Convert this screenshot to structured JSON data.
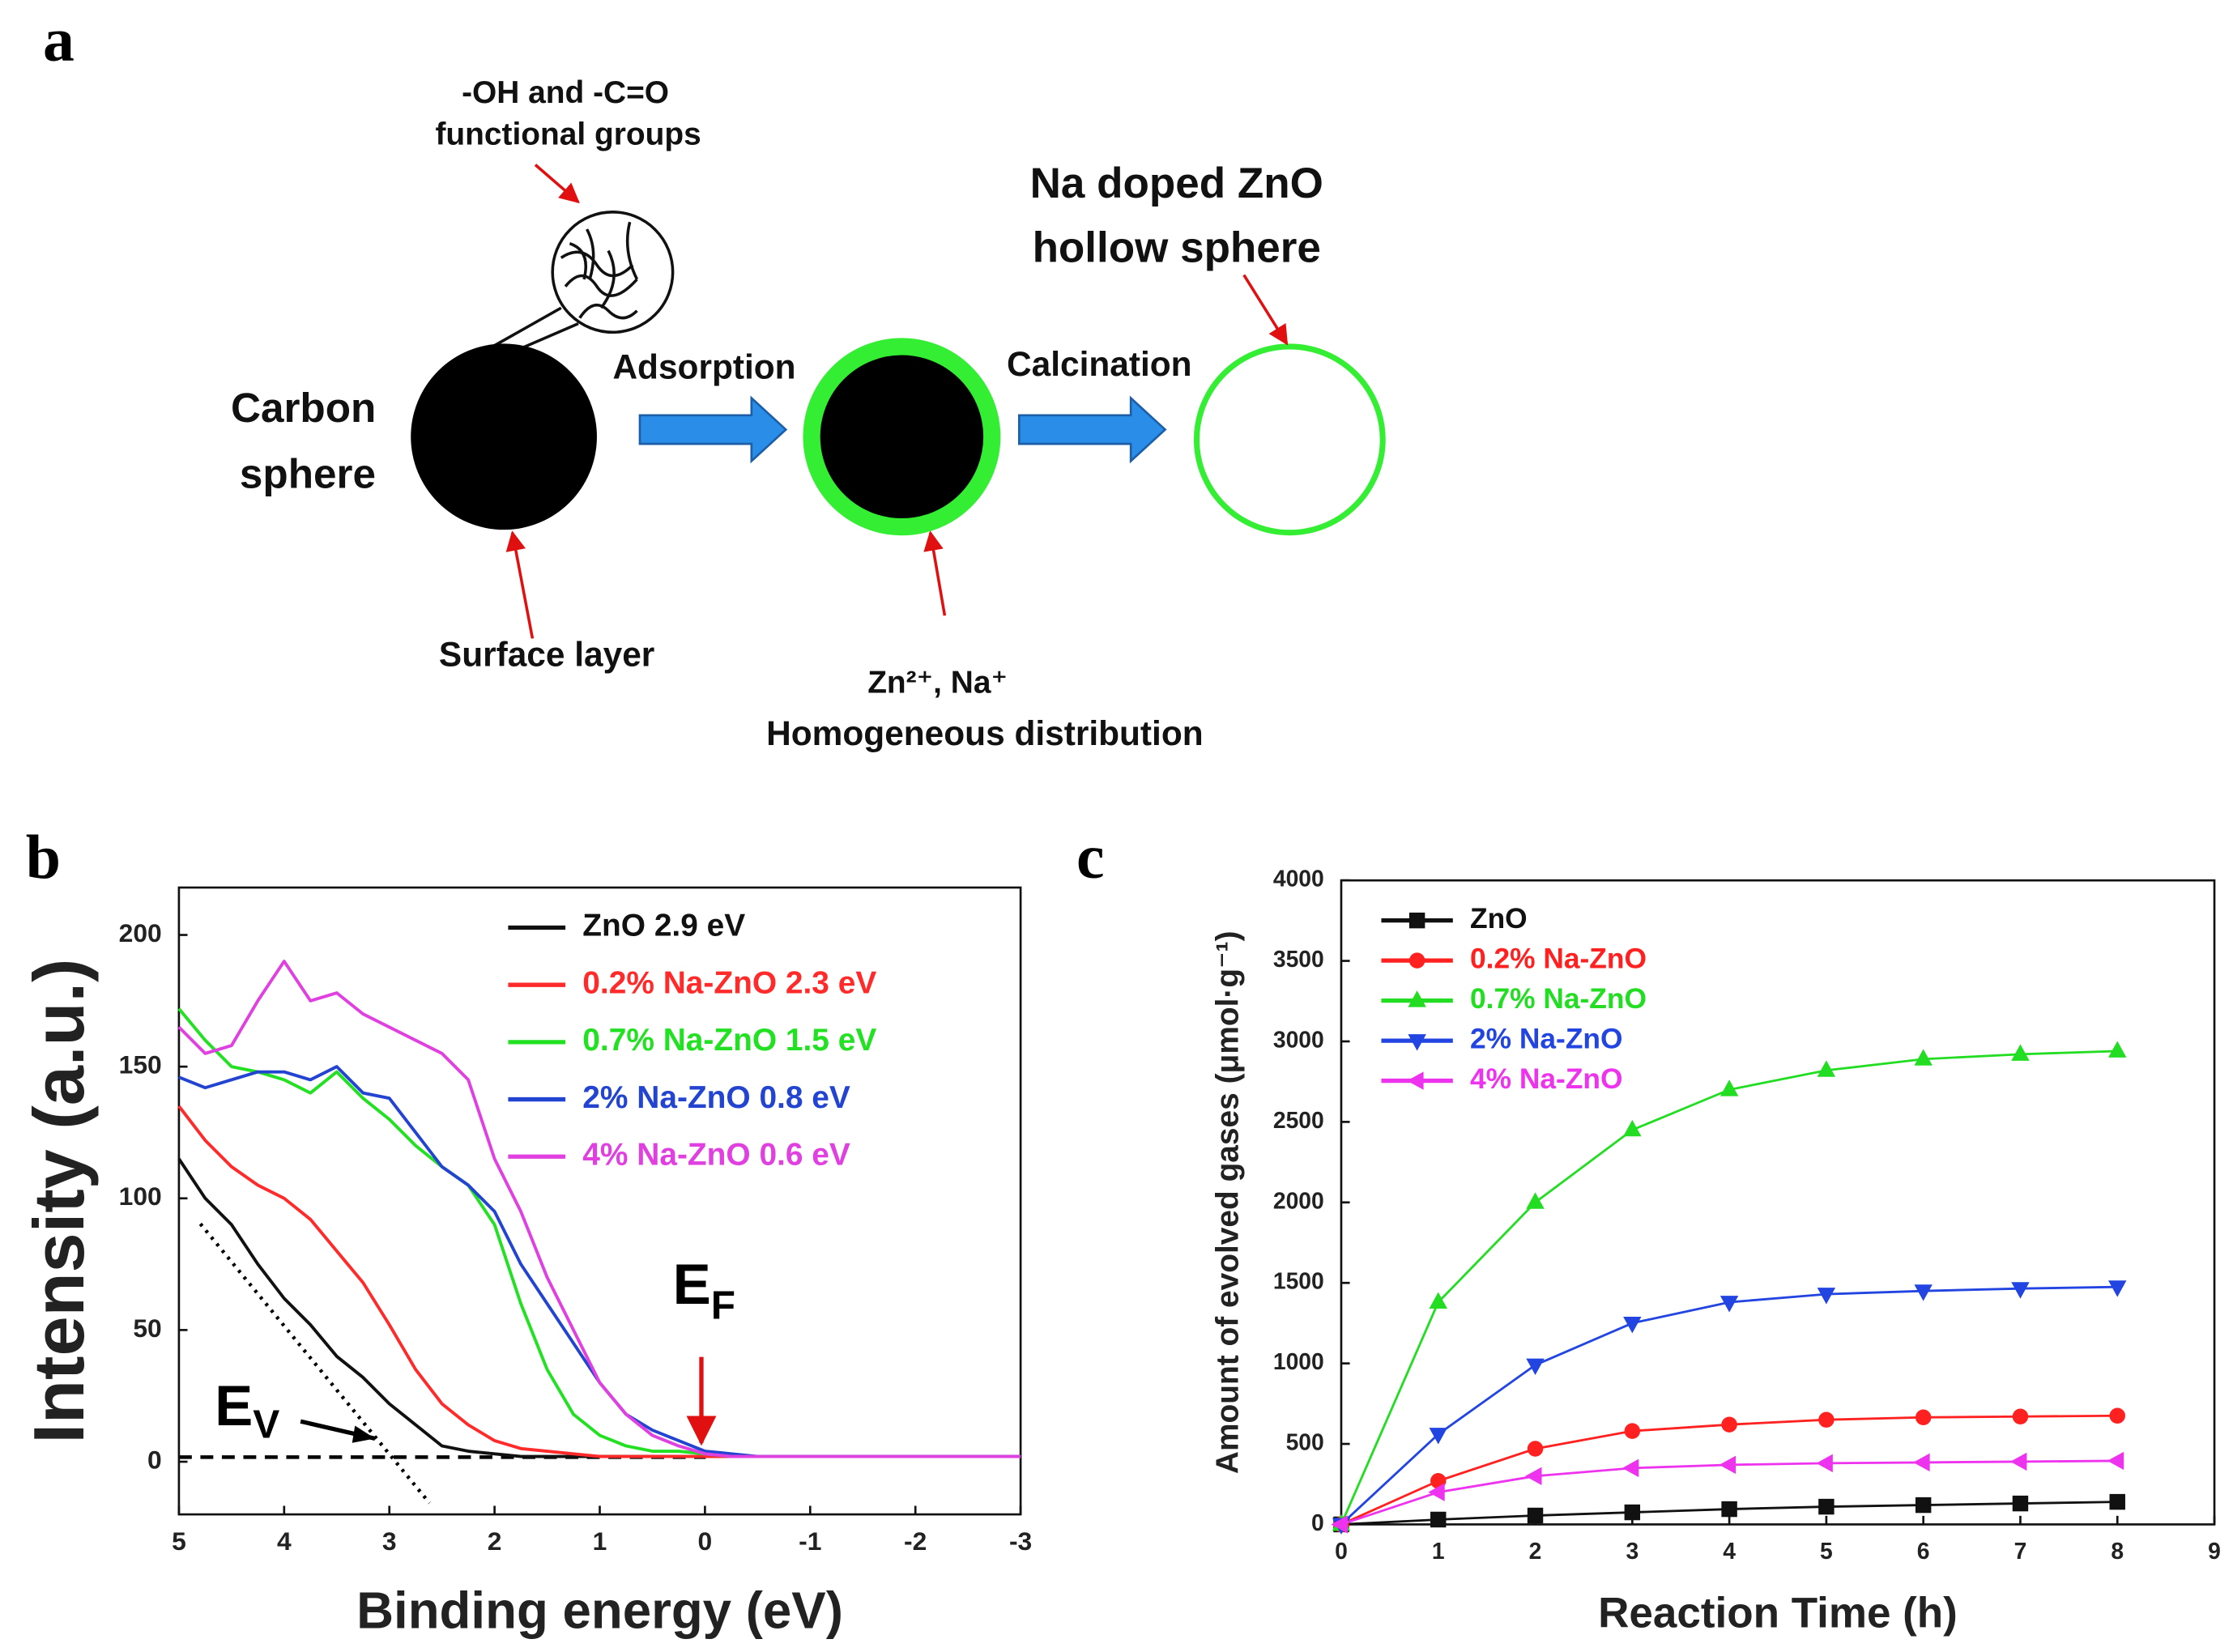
{
  "panel_labels": [
    "a",
    "b",
    "c"
  ],
  "diagram": {
    "groups_label": [
      "-OH and -C=O",
      "functional groups"
    ],
    "carbon_label": [
      "Carbon",
      "sphere"
    ],
    "surface_label": "Surface layer",
    "step1": "Adsorption",
    "ions_label": [
      "Zn²⁺, Na⁺",
      "Homogeneous distribution"
    ],
    "step2": "Calcination",
    "product_label": [
      "Na doped ZnO",
      "hollow sphere"
    ]
  },
  "chart_data": [
    {
      "type": "line",
      "xlabel": "Binding energy (eV)",
      "ylabel": "Intensity (a.u.)",
      "annotations": [
        {
          "text": "E",
          "sub": "V"
        },
        {
          "text": "E",
          "sub": "F"
        }
      ],
      "x": [
        5,
        4.75,
        4.5,
        4.25,
        4,
        3.75,
        3.5,
        3.25,
        3,
        2.75,
        2.5,
        2.25,
        2,
        1.75,
        1.5,
        1.25,
        1,
        0.75,
        0.5,
        0.25,
        0,
        -0.25,
        -0.5,
        -0.75,
        -1,
        -1.25,
        -1.5,
        -1.75,
        -2,
        -2.25,
        -2.5,
        -2.75,
        -3
      ],
      "series": [
        {
          "name": "ZnO 2.9 eV",
          "color": "#111111",
          "values": [
            115,
            100,
            90,
            75,
            62,
            52,
            40,
            32,
            22,
            14,
            6,
            4,
            3,
            2,
            2,
            2,
            2,
            2,
            2,
            2,
            2,
            2,
            2,
            2,
            2,
            2,
            2,
            2,
            2,
            2,
            2,
            2,
            2
          ]
        },
        {
          "name": "0.2% Na-ZnO 2.3 eV",
          "color": "#ff2a2a",
          "values": [
            135,
            122,
            112,
            105,
            100,
            92,
            80,
            68,
            52,
            35,
            22,
            14,
            8,
            5,
            4,
            3,
            2,
            2,
            2,
            2,
            2,
            2,
            2,
            2,
            2,
            2,
            2,
            2,
            2,
            2,
            2,
            2,
            2
          ]
        },
        {
          "name": "0.7% Na-ZnO 1.5 eV",
          "color": "#22e022",
          "values": [
            172,
            160,
            150,
            148,
            145,
            140,
            148,
            138,
            130,
            120,
            112,
            105,
            90,
            60,
            35,
            18,
            10,
            6,
            4,
            4,
            3,
            2,
            2,
            2,
            2,
            2,
            2,
            2,
            2,
            2,
            2,
            2,
            2
          ]
        },
        {
          "name": "2% Na-ZnO 0.8 eV",
          "color": "#2244d0",
          "values": [
            146,
            142,
            145,
            148,
            148,
            145,
            150,
            140,
            138,
            125,
            112,
            105,
            95,
            75,
            60,
            45,
            30,
            18,
            12,
            8,
            4,
            3,
            2,
            2,
            2,
            2,
            2,
            2,
            2,
            2,
            2,
            2,
            2
          ]
        },
        {
          "name": "4% Na-ZnO 0.6 eV",
          "color": "#e040e0",
          "values": [
            165,
            155,
            158,
            175,
            190,
            175,
            178,
            170,
            165,
            160,
            155,
            145,
            115,
            95,
            70,
            50,
            30,
            18,
            10,
            6,
            3,
            2,
            2,
            2,
            2,
            2,
            2,
            2,
            2,
            2,
            2,
            2,
            2
          ]
        }
      ],
      "xlim": [
        5,
        -3
      ],
      "xticks": [
        5,
        4,
        3,
        2,
        1,
        0,
        -1,
        -2,
        -3
      ],
      "ylim": [
        -20,
        218
      ],
      "yticks": [
        0,
        50,
        100,
        150,
        200
      ],
      "legend": "upper right"
    },
    {
      "type": "line",
      "xlabel": "Reaction Time (h)",
      "ylabel": "Amount of evolved gases (μmol·g⁻¹)",
      "x": [
        0,
        1,
        2,
        3,
        4,
        5,
        6,
        7,
        8
      ],
      "series": [
        {
          "name": "ZnO",
          "color": "#111111",
          "marker": "square",
          "values": [
            0,
            30,
            55,
            75,
            95,
            110,
            120,
            130,
            140
          ]
        },
        {
          "name": "0.2% Na-ZnO",
          "color": "#ff2020",
          "marker": "circle",
          "values": [
            0,
            270,
            470,
            580,
            620,
            650,
            665,
            670,
            675
          ]
        },
        {
          "name": "0.7% Na-ZnO",
          "color": "#22dd22",
          "marker": "triangle-up",
          "values": [
            0,
            1380,
            2000,
            2450,
            2700,
            2820,
            2890,
            2920,
            2940
          ]
        },
        {
          "name": "2% Na-ZnO",
          "color": "#2244e0",
          "marker": "triangle-down",
          "values": [
            0,
            560,
            990,
            1250,
            1380,
            1430,
            1450,
            1465,
            1475
          ]
        },
        {
          "name": "4% Na-ZnO",
          "color": "#ee33ee",
          "marker": "triangle-left",
          "values": [
            0,
            200,
            300,
            350,
            370,
            380,
            385,
            390,
            395
          ]
        }
      ],
      "xlim": [
        0,
        9
      ],
      "xticks": [
        0,
        1,
        2,
        3,
        4,
        5,
        6,
        7,
        8,
        9
      ],
      "ylim": [
        0,
        4000
      ],
      "yticks": [
        0,
        500,
        1000,
        1500,
        2000,
        2500,
        3000,
        3500,
        4000
      ],
      "legend": "upper left"
    }
  ]
}
